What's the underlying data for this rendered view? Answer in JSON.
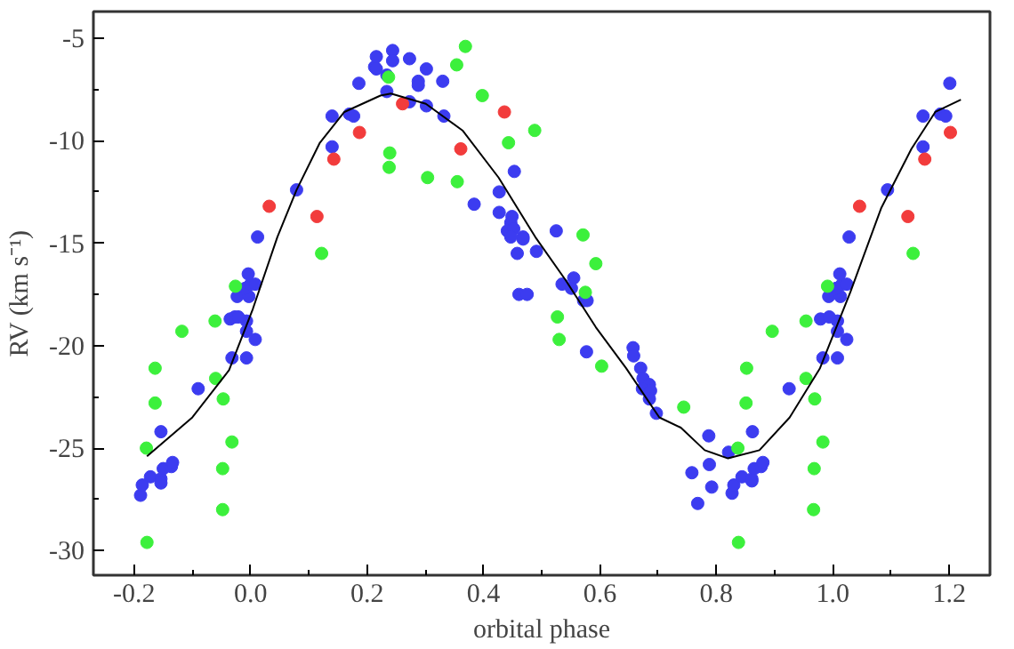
{
  "chart_data": {
    "type": "scatter",
    "xlabel": "orbital phase",
    "ylabel": "RV (km s⁻¹)",
    "xlim": [
      -0.27,
      1.27
    ],
    "ylim": [
      -31.2,
      -3.7
    ],
    "xticks": [
      {
        "value": -0.2,
        "label": "-0.2"
      },
      {
        "value": 0,
        "label": "0.0"
      },
      {
        "value": 0.2,
        "label": "0.2"
      },
      {
        "value": 0.4,
        "label": "0.4"
      },
      {
        "value": 0.6,
        "label": "0.6"
      },
      {
        "value": 0.8,
        "label": "0.8"
      },
      {
        "value": 1.0,
        "label": "1.0"
      },
      {
        "value": 1.2,
        "label": "1.2"
      }
    ],
    "yticks": [
      -5,
      -10,
      -15,
      -20,
      -25,
      -30
    ],
    "marker": "circle",
    "series": [
      {
        "color": "#3c3cf0",
        "x": [
          -0.189,
          -0.186,
          -0.172,
          -0.154,
          -0.154,
          -0.15,
          -0.136,
          -0.134,
          -0.154,
          -0.09,
          -0.032,
          -0.007,
          0.008,
          -0.007,
          -0.007,
          -0.035,
          -0.027,
          -0.021,
          -0.023,
          -0.003,
          -0.009,
          0.0,
          0.008,
          -0.004,
          0.012,
          0.079,
          0.14,
          0.14,
          0.17,
          0.177,
          0.186,
          0.213,
          0.216,
          0.216,
          0.244,
          0.244,
          0.273,
          0.234,
          0.234,
          0.273,
          0.288,
          0.288,
          0.302,
          0.302,
          0.33,
          0.332,
          0.453,
          0.427,
          0.384,
          0.427,
          0.449,
          0.447,
          0.441,
          0.452,
          0.447,
          0.468,
          0.468,
          0.458,
          0.491,
          0.525,
          0.461,
          0.475,
          0.555,
          0.535,
          0.551,
          0.572,
          0.578,
          0.577,
          0.657,
          0.658,
          0.67,
          0.674,
          0.685,
          0.673,
          0.687,
          0.685,
          0.697,
          0.787,
          0.758,
          0.768,
          0.788,
          0.792,
          0.821,
          0.827,
          0.83,
          0.844,
          0.861,
          0.861,
          0.865,
          0.877,
          0.88,
          0.862,
          0.925,
          0.983,
          1.008,
          1.024,
          1.008,
          1.008,
          0.979,
          0.994,
          0.993,
          1.013,
          1.006,
          1.016,
          1.024,
          1.012,
          1.028,
          1.094,
          1.155,
          1.155,
          1.185,
          1.194,
          1.201
        ],
        "values": [
          -27.3,
          -26.8,
          -26.4,
          -26.5,
          -26.7,
          -26.0,
          -25.9,
          -25.7,
          -24.2,
          -22.1,
          -20.6,
          -20.6,
          -19.7,
          -19.3,
          -18.8,
          -18.7,
          -18.6,
          -18.6,
          -17.6,
          -17.6,
          -17.2,
          -17.0,
          -17.0,
          -16.5,
          -14.7,
          -12.4,
          -10.3,
          -8.8,
          -8.7,
          -8.8,
          -7.2,
          -6.4,
          -6.5,
          -5.9,
          -5.6,
          -6.1,
          -6.0,
          -6.8,
          -7.6,
          -8.1,
          -7.1,
          -7.3,
          -6.5,
          -8.3,
          -7.1,
          -8.8,
          -11.5,
          -12.5,
          -13.1,
          -13.5,
          -13.7,
          -14.0,
          -14.4,
          -14.3,
          -14.7,
          -14.7,
          -14.8,
          -15.5,
          -15.4,
          -14.4,
          -17.5,
          -17.5,
          -16.7,
          -17.0,
          -17.2,
          -17.8,
          -17.8,
          -20.3,
          -20.1,
          -20.5,
          -21.1,
          -21.6,
          -21.9,
          -22.1,
          -22.2,
          -22.6,
          -23.3,
          -24.4,
          -26.2,
          -27.7,
          -25.8,
          -26.9,
          -25.2,
          -27.2,
          -26.8,
          -26.4,
          -26.6,
          -26.5,
          -26.0,
          -25.9,
          -25.7,
          -24.2,
          -22.1,
          -20.6,
          -20.6,
          -19.7,
          -19.3,
          -18.8,
          -18.7,
          -18.6,
          -17.6,
          -17.6,
          -17.2,
          -17.0,
          -17.0,
          -16.5,
          -14.7,
          -12.4,
          -10.3,
          -8.8,
          -8.7,
          -8.8,
          -7.2
        ]
      },
      {
        "color": "#f23c3c",
        "x": [
          0.032,
          0.114,
          0.143,
          0.187,
          0.261,
          0.361,
          0.436,
          1.046,
          1.129,
          1.158,
          1.202
        ],
        "values": [
          -13.2,
          -13.7,
          -10.9,
          -9.6,
          -8.2,
          -10.4,
          -8.6,
          -13.2,
          -13.7,
          -10.9,
          -9.6
        ]
      },
      {
        "color": "#3cf03c",
        "x": [
          -0.178,
          -0.179,
          -0.164,
          -0.164,
          -0.118,
          -0.061,
          -0.026,
          -0.06,
          -0.047,
          -0.032,
          -0.048,
          -0.048,
          0.122,
          0.237,
          0.239,
          0.238,
          0.304,
          0.355,
          0.354,
          0.369,
          0.398,
          0.443,
          0.488,
          0.571,
          0.593,
          0.575,
          0.527,
          0.53,
          0.603,
          0.744,
          0.837,
          0.838,
          0.851,
          0.852,
          0.896,
          0.954,
          0.991,
          0.954,
          0.969,
          0.983,
          0.968,
          0.967,
          1.138
        ],
        "values": [
          -29.6,
          -25.0,
          -22.8,
          -21.1,
          -19.3,
          -18.8,
          -17.1,
          -21.6,
          -22.6,
          -24.7,
          -26.0,
          -28.0,
          -15.5,
          -6.9,
          -10.6,
          -11.3,
          -11.8,
          -12.0,
          -6.3,
          -5.4,
          -7.8,
          -10.1,
          -9.5,
          -14.6,
          -16.0,
          -17.4,
          -18.6,
          -19.7,
          -21.0,
          -23.0,
          -25.0,
          -29.6,
          -22.8,
          -21.1,
          -19.3,
          -18.8,
          -17.1,
          -21.6,
          -22.6,
          -24.7,
          -26.0,
          -28.0,
          -15.5
        ]
      },
      {
        "type": "line",
        "color": "#000000",
        "marker": "none",
        "x": [
          -0.178,
          -0.1,
          -0.037,
          0.004,
          0.046,
          0.079,
          0.119,
          0.161,
          0.223,
          0.241,
          0.301,
          0.364,
          0.426,
          0.489,
          0.541,
          0.593,
          0.645,
          0.702,
          0.739,
          0.78,
          0.82,
          0.874,
          0.926,
          0.978,
          1.03,
          1.083,
          1.135,
          1.176,
          1.22
        ],
        "values": [
          -25.4,
          -23.5,
          -21.2,
          -18.2,
          -14.7,
          -12.4,
          -10.1,
          -8.6,
          -7.8,
          -7.7,
          -8.2,
          -9.5,
          -11.8,
          -14.7,
          -16.8,
          -19.1,
          -21.1,
          -23.5,
          -24.0,
          -25.1,
          -25.5,
          -25.1,
          -23.5,
          -21.1,
          -17.4,
          -13.3,
          -10.4,
          -8.6,
          -8.0
        ]
      }
    ]
  }
}
